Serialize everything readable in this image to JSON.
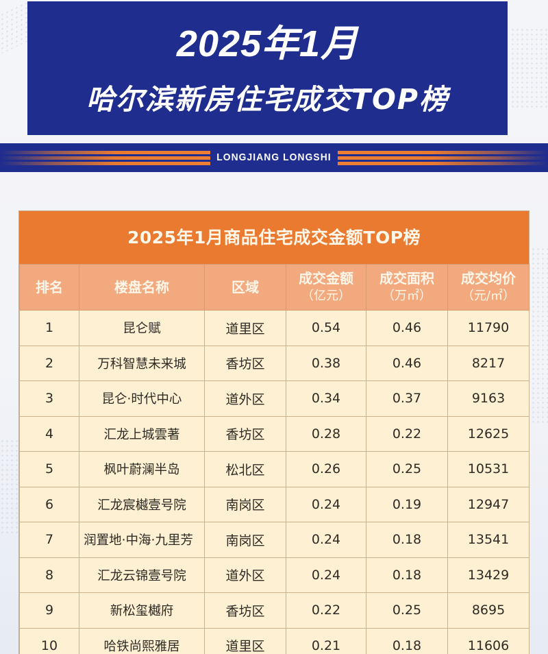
{
  "header": {
    "title_line1": "2025年1月",
    "title_line2": "哈尔滨新房住宅成交TOP榜",
    "banner_label": "LONGJIANG LONGSHI"
  },
  "colors": {
    "navy": "#1e2d8e",
    "orange": "#ea7a2f",
    "header_peach": "#f2a97d",
    "cell_cream": "#fef1d3"
  },
  "table": {
    "title": "2025年1月商品住宅成交金额TOP榜",
    "columns": [
      {
        "label": "排名",
        "unit": ""
      },
      {
        "label": "楼盘名称",
        "unit": ""
      },
      {
        "label": "区域",
        "unit": ""
      },
      {
        "label": "成交金额",
        "unit": "（亿元）"
      },
      {
        "label": "成交面积",
        "unit": "（万㎡）"
      },
      {
        "label": "成交均价",
        "unit": "（元/㎡）"
      }
    ],
    "rows": [
      {
        "rank": "1",
        "name": "昆仑赋",
        "district": "道里区",
        "amount": "0.54",
        "area": "0.46",
        "price": "11790"
      },
      {
        "rank": "2",
        "name": "万科智慧未来城",
        "district": "香坊区",
        "amount": "0.38",
        "area": "0.46",
        "price": "8217"
      },
      {
        "rank": "3",
        "name": "昆仑·时代中心",
        "district": "道外区",
        "amount": "0.34",
        "area": "0.37",
        "price": "9163"
      },
      {
        "rank": "4",
        "name": "汇龙上城雲著",
        "district": "香坊区",
        "amount": "0.28",
        "area": "0.22",
        "price": "12625"
      },
      {
        "rank": "5",
        "name": "枫叶蔚澜半岛",
        "district": "松北区",
        "amount": "0.26",
        "area": "0.25",
        "price": "10531"
      },
      {
        "rank": "6",
        "name": "汇龙宸樾壹号院",
        "district": "南岗区",
        "amount": "0.24",
        "area": "0.19",
        "price": "12947"
      },
      {
        "rank": "7",
        "name": "润置地·中海·九里芳",
        "district": "南岗区",
        "amount": "0.24",
        "area": "0.18",
        "price": "13541"
      },
      {
        "rank": "8",
        "name": "汇龙云锦壹号院",
        "district": "道外区",
        "amount": "0.24",
        "area": "0.18",
        "price": "13429"
      },
      {
        "rank": "9",
        "name": "新松玺樾府",
        "district": "香坊区",
        "amount": "0.22",
        "area": "0.25",
        "price": "8695"
      },
      {
        "rank": "10",
        "name": "哈铁尚熙雅居",
        "district": "道里区",
        "amount": "0.21",
        "area": "0.18",
        "price": "11606"
      }
    ]
  }
}
